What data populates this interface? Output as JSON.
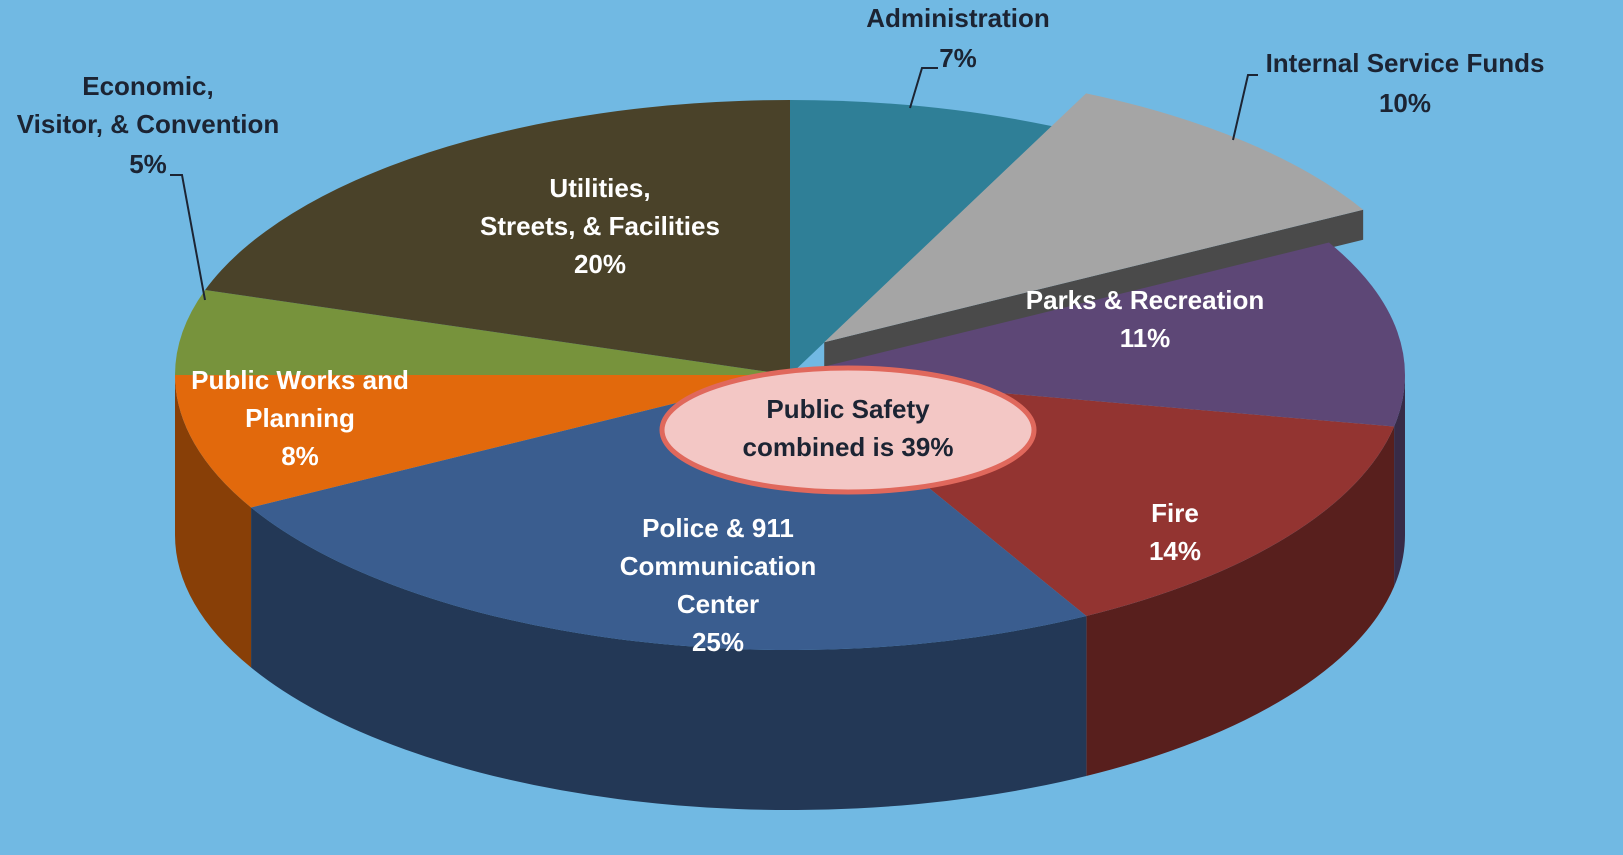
{
  "chart_data": {
    "type": "pie3d",
    "categories": [
      "Administration",
      "Internal Service Funds",
      "Parks & Recreation",
      "Fire",
      "Police & 911\nCommunication\nCenter",
      "Public Works and\nPlanning",
      "Economic,\nVisitor, & Convention",
      "Utilities,\nStreets, & Facilities"
    ],
    "values": [
      7,
      10,
      11,
      14,
      25,
      8,
      5,
      20
    ],
    "value_labels": [
      "7%",
      "10%",
      "11%",
      "14%",
      "25%",
      "8%",
      "5%",
      "20%"
    ],
    "colors": [
      "#2f7f97",
      "#a5a5a5",
      "#5d4776",
      "#933431",
      "#3a5d8f",
      "#e2690c",
      "#77933c",
      "#4a4229"
    ],
    "exploded": [
      1
    ],
    "annotation": "Public Safety\ncombined is 39%"
  }
}
